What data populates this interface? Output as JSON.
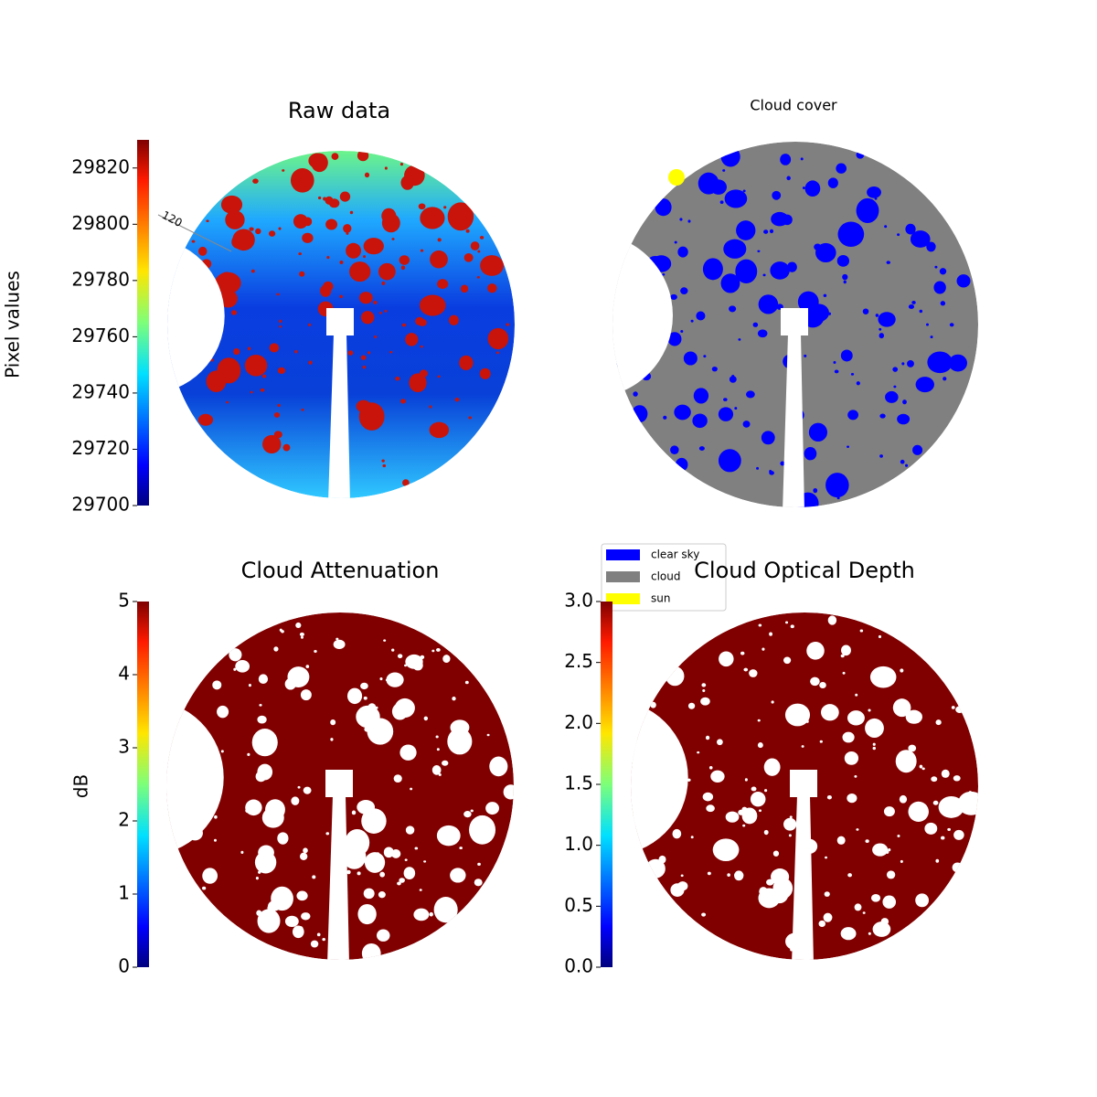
{
  "chart_data": [
    {
      "type": "image",
      "title": "Raw data",
      "colorbar_label": "Pixel values",
      "clim": [
        29700,
        29830
      ],
      "cticks": [
        29700,
        29720,
        29740,
        29760,
        29780,
        29800,
        29820
      ],
      "annotations": [
        "120"
      ]
    },
    {
      "type": "image",
      "title": "Cloud cover",
      "color": "#808080",
      "legend": [
        {
          "name": "clear sky",
          "color": "#0000ff"
        },
        {
          "name": "cloud",
          "color": "#808080"
        },
        {
          "name": "sun",
          "color": "#ffff00"
        }
      ]
    },
    {
      "type": "image",
      "title": "Cloud Attenuation",
      "color": "#800000",
      "colorbar_label": "dB",
      "clim": [
        0,
        5
      ],
      "cticks": [
        0,
        1,
        2,
        3,
        4,
        5
      ]
    },
    {
      "type": "image",
      "title": "Cloud Optical Depth",
      "color": "#800000",
      "clim": [
        0,
        3
      ],
      "cticks": [
        {
          "value": 0,
          "label": "0.0"
        },
        {
          "value": 0.5,
          "label": "0.5"
        },
        {
          "value": 1,
          "label": "1.0"
        },
        {
          "value": 1.5,
          "label": "1.5"
        },
        {
          "value": 2,
          "label": "2.0"
        },
        {
          "value": 2.5,
          "label": "2.5"
        },
        {
          "value": 3,
          "label": "3.0"
        }
      ]
    }
  ]
}
